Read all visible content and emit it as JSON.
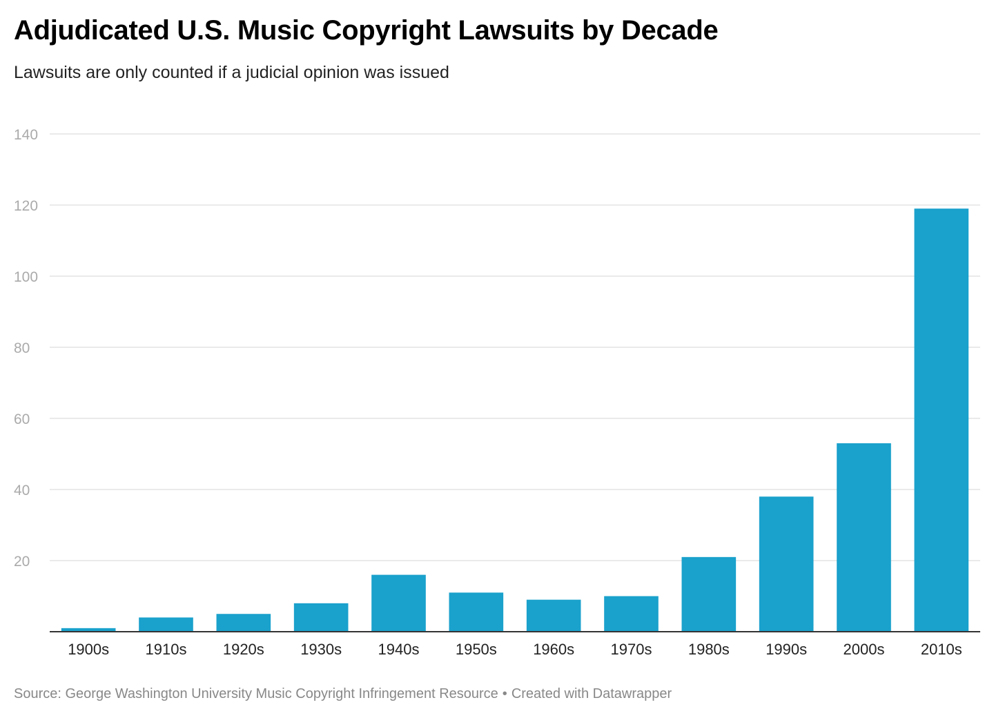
{
  "chart_data": {
    "type": "bar",
    "title": "Adjudicated U.S. Music Copyright Lawsuits by Decade",
    "subtitle": "Lawsuits are only counted if a judicial opinion was issued",
    "xlabel": "",
    "ylabel": "",
    "categories": [
      "1900s",
      "1910s",
      "1920s",
      "1930s",
      "1940s",
      "1950s",
      "1960s",
      "1970s",
      "1980s",
      "1990s",
      "2000s",
      "2010s"
    ],
    "values": [
      1,
      4,
      5,
      8,
      16,
      11,
      9,
      10,
      21,
      38,
      53,
      119
    ],
    "ylim": [
      0,
      140
    ],
    "yticks": [
      20,
      40,
      60,
      80,
      100,
      120,
      140
    ],
    "grid": true,
    "legend": "none",
    "bar_color": "#1aa1cc"
  },
  "footer": {
    "source": "Source: George Washington University Music Copyright Infringement Resource",
    "separator": "•",
    "credit": "Created with Datawrapper"
  }
}
